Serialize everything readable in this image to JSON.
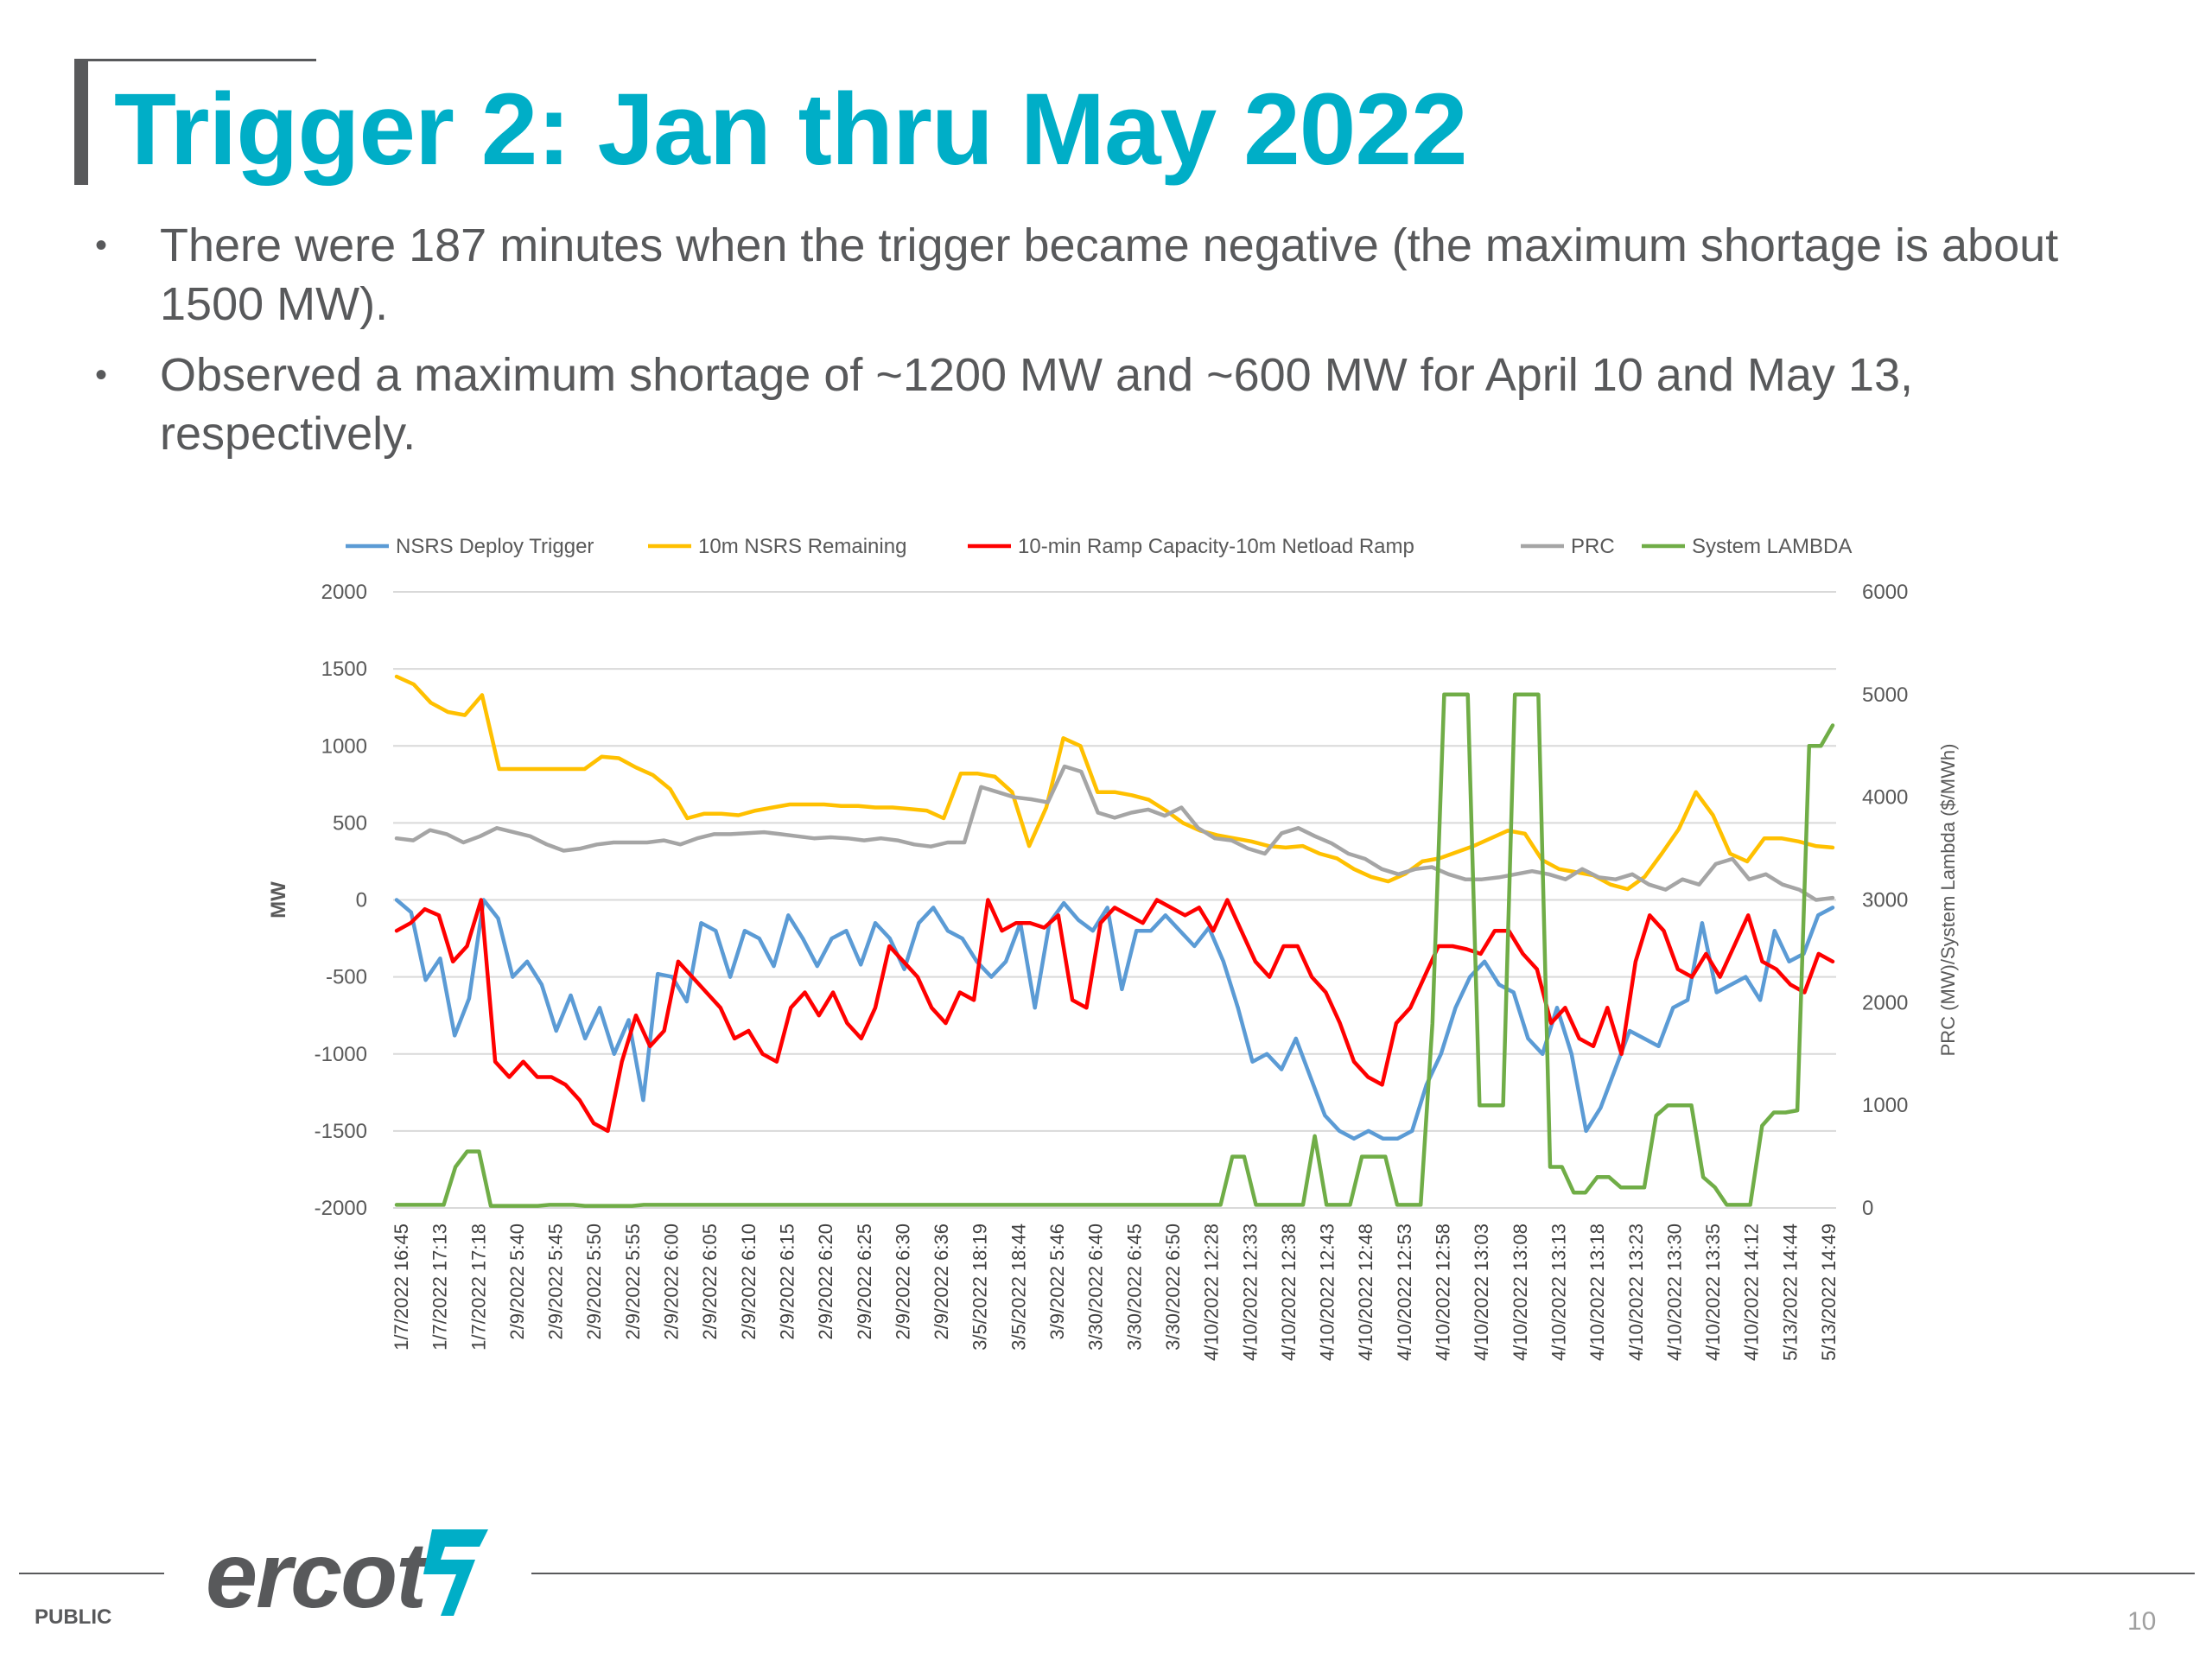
{
  "slide": {
    "title": "Trigger 2: Jan thru May 2022",
    "bullets": [
      "There were 187 minutes when the trigger became negative (the maximum shortage is about 1500 MW).",
      "Observed a maximum shortage of ~1200 MW and ~600 MW for April 10 and May 13, respectively."
    ],
    "bullet_glyph": "•",
    "footer": {
      "logo": "ercot",
      "classification": "PUBLIC",
      "page_number": "10"
    },
    "colors": {
      "title": "#00aec7",
      "text": "#58595b"
    }
  },
  "chart_data": {
    "type": "line",
    "y_left_label": "MW",
    "y_right_label": "PRC (MW)/System Lambda ($/MWh)",
    "y_left_range": [
      -2000,
      2000
    ],
    "y_left_ticks": [
      2000,
      1500,
      1000,
      500,
      0,
      -500,
      -1000,
      -1500,
      -2000
    ],
    "y_right_range": [
      0,
      6000
    ],
    "y_right_ticks": [
      6000,
      5000,
      4000,
      3000,
      2000,
      1000,
      0
    ],
    "gridlines": true,
    "legend_position": "top",
    "x_tick_labels": [
      "1/7/2022 16:45",
      "1/7/2022 17:13",
      "1/7/2022 17:18",
      "2/9/2022 5:40",
      "2/9/2022 5:45",
      "2/9/2022 5:50",
      "2/9/2022 5:55",
      "2/9/2022 6:00",
      "2/9/2022 6:05",
      "2/9/2022 6:10",
      "2/9/2022 6:15",
      "2/9/2022 6:20",
      "2/9/2022 6:25",
      "2/9/2022 6:30",
      "2/9/2022 6:36",
      "3/5/2022 18:19",
      "3/5/2022 18:44",
      "3/9/2022 5:46",
      "3/30/2022 6:40",
      "3/30/2022 6:45",
      "3/30/2022 6:50",
      "4/10/2022 12:28",
      "4/10/2022 12:33",
      "4/10/2022 12:38",
      "4/10/2022 12:43",
      "4/10/2022 12:48",
      "4/10/2022 12:53",
      "4/10/2022 12:58",
      "4/10/2022 13:03",
      "4/10/2022 13:08",
      "4/10/2022 13:13",
      "4/10/2022 13:18",
      "4/10/2022 13:23",
      "4/10/2022 13:30",
      "4/10/2022 13:35",
      "4/10/2022 14:12",
      "5/13/2022 14:44",
      "5/13/2022 14:49"
    ],
    "series": [
      {
        "name": "NSRS Deploy Trigger",
        "color": "#5b9bd5",
        "axis": "left",
        "values": [
          0,
          -80,
          -520,
          -380,
          -880,
          -640,
          0,
          -120,
          -500,
          -400,
          -550,
          -850,
          -620,
          -900,
          -700,
          -1000,
          -780,
          -1300,
          -480,
          -500,
          -660,
          -150,
          -200,
          -500,
          -200,
          -250,
          -430,
          -100,
          -250,
          -430,
          -250,
          -200,
          -420,
          -150,
          -250,
          -450,
          -150,
          -50,
          -200,
          -250,
          -400,
          -500,
          -400,
          -150,
          -700,
          -150,
          -20,
          -130,
          -200,
          -50,
          -580,
          -200,
          -200,
          -100,
          -200,
          -300,
          -180,
          -400,
          -700,
          -1050,
          -1000,
          -1100,
          -900,
          -1150,
          -1400,
          -1500,
          -1550,
          -1500,
          -1550,
          -1550,
          -1500,
          -1200,
          -1000,
          -700,
          -500,
          -400,
          -550,
          -600,
          -900,
          -1000,
          -700,
          -1000,
          -1500,
          -1350,
          -1100,
          -850,
          -900,
          -950,
          -700,
          -650,
          -150,
          -600,
          -550,
          -500,
          -650,
          -200,
          -400,
          -350,
          -100,
          -50
        ]
      },
      {
        "name": "10m NSRS Remaining",
        "color": "#ffc000",
        "axis": "left",
        "values": [
          1450,
          1400,
          1280,
          1220,
          1200,
          1330,
          850,
          850,
          850,
          850,
          850,
          850,
          930,
          920,
          860,
          810,
          720,
          530,
          560,
          560,
          550,
          580,
          600,
          620,
          620,
          620,
          610,
          610,
          600,
          600,
          590,
          580,
          530,
          820,
          820,
          800,
          700,
          350,
          600,
          1050,
          1000,
          700,
          700,
          680,
          650,
          580,
          500,
          450,
          420,
          400,
          380,
          350,
          340,
          350,
          300,
          270,
          200,
          150,
          120,
          170,
          250,
          270,
          310,
          350,
          400,
          450,
          430,
          260,
          200,
          180,
          160,
          100,
          70,
          150,
          300,
          460,
          700,
          550,
          300,
          250,
          400,
          400,
          380,
          350,
          340
        ]
      },
      {
        "name": "10-min Ramp Capacity-10m Netload Ramp",
        "color": "#ff0000",
        "axis": "left",
        "values": [
          -200,
          -150,
          -60,
          -100,
          -400,
          -300,
          0,
          -1050,
          -1150,
          -1050,
          -1150,
          -1150,
          -1200,
          -1300,
          -1450,
          -1500,
          -1050,
          -750,
          -950,
          -850,
          -400,
          -500,
          -600,
          -700,
          -900,
          -850,
          -1000,
          -1050,
          -700,
          -600,
          -750,
          -600,
          -800,
          -900,
          -700,
          -300,
          -400,
          -500,
          -700,
          -800,
          -600,
          -650,
          0,
          -200,
          -150,
          -150,
          -180,
          -100,
          -650,
          -700,
          -150,
          -50,
          -100,
          -150,
          0,
          -50,
          -100,
          -50,
          -200,
          0,
          -200,
          -400,
          -500,
          -300,
          -300,
          -500,
          -600,
          -800,
          -1050,
          -1150,
          -1200,
          -800,
          -700,
          -500,
          -300,
          -300,
          -320,
          -350,
          -200,
          -200,
          -350,
          -450,
          -800,
          -700,
          -900,
          -950,
          -700,
          -1000,
          -400,
          -100,
          -200,
          -450,
          -500,
          -350,
          -500,
          -300,
          -100,
          -400,
          -450,
          -550,
          -600,
          -350,
          -400
        ]
      },
      {
        "name": "PRC",
        "color": "#a5a5a5",
        "axis": "right",
        "values": [
          3600,
          3580,
          3680,
          3640,
          3560,
          3620,
          3700,
          3660,
          3620,
          3540,
          3480,
          3500,
          3540,
          3560,
          3560,
          3560,
          3580,
          3540,
          3600,
          3640,
          3640,
          3650,
          3660,
          3640,
          3620,
          3600,
          3610,
          3600,
          3580,
          3600,
          3580,
          3540,
          3520,
          3560,
          3560,
          4100,
          4050,
          4000,
          3980,
          3950,
          4300,
          4250,
          3850,
          3800,
          3850,
          3880,
          3820,
          3900,
          3700,
          3600,
          3580,
          3500,
          3450,
          3650,
          3700,
          3620,
          3550,
          3450,
          3400,
          3300,
          3250,
          3300,
          3320,
          3250,
          3200,
          3200,
          3220,
          3250,
          3280,
          3250,
          3200,
          3300,
          3220,
          3200,
          3250,
          3150,
          3100,
          3200,
          3150,
          3350,
          3400,
          3200,
          3250,
          3150,
          3100,
          3000,
          3020
        ]
      },
      {
        "name": "System LAMBDA",
        "color": "#70ad47",
        "axis": "right",
        "values": [
          30,
          30,
          30,
          30,
          30,
          400,
          550,
          550,
          20,
          20,
          20,
          20,
          20,
          30,
          30,
          30,
          20,
          20,
          20,
          20,
          20,
          30,
          30,
          30,
          30,
          30,
          30,
          30,
          30,
          30,
          30,
          30,
          30,
          30,
          30,
          30,
          30,
          30,
          30,
          30,
          30,
          30,
          30,
          30,
          30,
          30,
          30,
          30,
          30,
          30,
          30,
          30,
          30,
          30,
          30,
          30,
          30,
          30,
          30,
          30,
          30,
          30,
          30,
          30,
          30,
          30,
          30,
          30,
          30,
          30,
          30,
          500,
          500,
          30,
          30,
          30,
          30,
          30,
          700,
          30,
          30,
          30,
          500,
          500,
          500,
          30,
          30,
          30,
          1800,
          5000,
          5000,
          5000,
          1000,
          1000,
          1000,
          5000,
          5000,
          5000,
          400,
          400,
          150,
          150,
          300,
          300,
          200,
          200,
          200,
          900,
          1000,
          1000,
          1000,
          300,
          200,
          30,
          30,
          30,
          800,
          930,
          930,
          950,
          4500,
          4500,
          4700
        ]
      }
    ]
  }
}
